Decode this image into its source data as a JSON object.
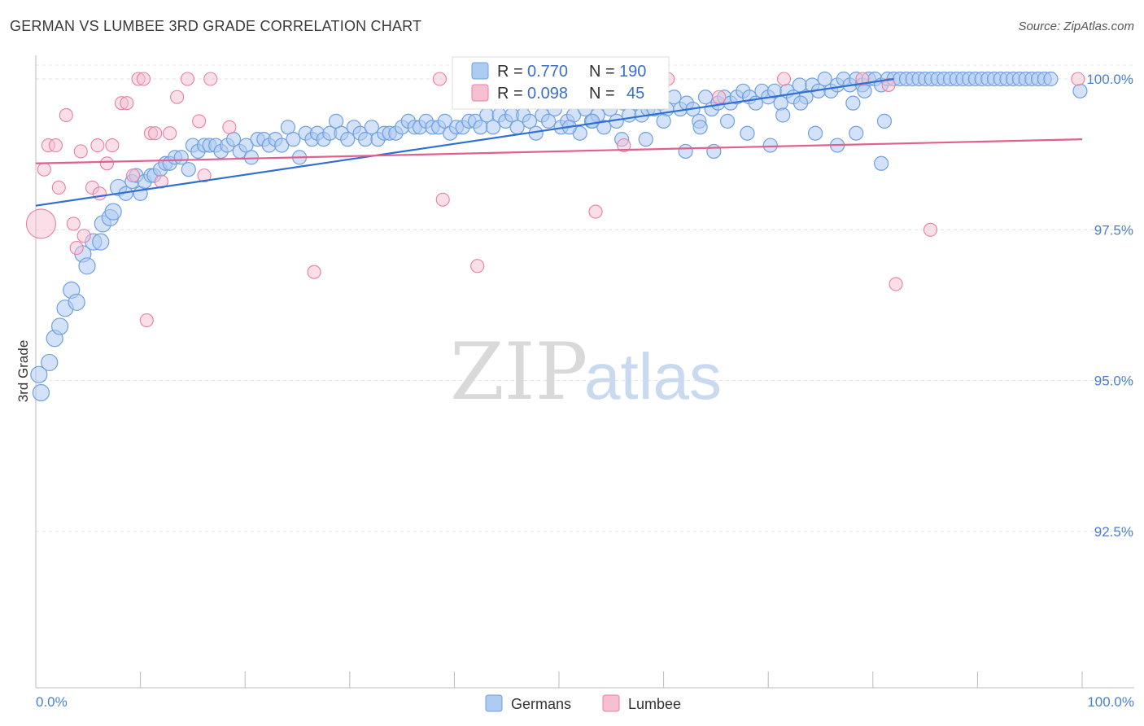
{
  "title": "GERMAN VS LUMBEE 3RD GRADE CORRELATION CHART",
  "source": "Source: ZipAtlas.com",
  "watermark": {
    "zip": "ZIP",
    "atlas": "atlas"
  },
  "colors": {
    "german": "#6fa0e0",
    "german_fill": "#aecbf2",
    "german_line": "#2f6fd0",
    "lumbee": "#e87fa4",
    "lumbee_fill": "#f6bfd2",
    "lumbee_line": "#e0608f"
  },
  "legend": {
    "german": {
      "r_label": "R = ",
      "r_value": "0.770",
      "n_label": "N = ",
      "n_value": "190"
    },
    "lumbee": {
      "r_label": "R = ",
      "r_value": "0.098",
      "n_label": "N = ",
      "n_value": "45"
    }
  },
  "chart_data": {
    "type": "scatter",
    "title": "GERMAN VS LUMBEE 3RD GRADE CORRELATION CHART",
    "xlabel": "",
    "ylabel": "3rd Grade",
    "xlim": [
      0,
      100
    ],
    "ylim": [
      90.0,
      100.3
    ],
    "x_tick_labels": [
      "0.0%",
      "100.0%"
    ],
    "y_ticks": [
      92.5,
      95.0,
      97.5,
      100.0
    ],
    "y_tick_labels": [
      "92.5%",
      "95.0%",
      "97.5%",
      "100.0%"
    ],
    "grid": true,
    "legend_position": "top-center",
    "series": [
      {
        "name": "Germans",
        "trend": {
          "x0": 0,
          "y0": 97.9,
          "x1": 82,
          "y1": 100.0
        },
        "points": [
          [
            0.3,
            95.1
          ],
          [
            0.5,
            94.8
          ],
          [
            1.3,
            95.3
          ],
          [
            1.8,
            95.7
          ],
          [
            2.3,
            95.9
          ],
          [
            2.8,
            96.2
          ],
          [
            3.4,
            96.5
          ],
          [
            3.9,
            96.3
          ],
          [
            4.5,
            97.1
          ],
          [
            4.9,
            96.9
          ],
          [
            5.5,
            97.3
          ],
          [
            6.2,
            97.3
          ],
          [
            6.4,
            97.6
          ],
          [
            7.1,
            97.7
          ],
          [
            7.4,
            97.8
          ],
          [
            7.9,
            98.2
          ],
          [
            8.6,
            98.1
          ],
          [
            9.2,
            98.3
          ],
          [
            9.6,
            98.4
          ],
          [
            10.0,
            98.1
          ],
          [
            10.4,
            98.3
          ],
          [
            11.0,
            98.4
          ],
          [
            11.3,
            98.4
          ],
          [
            11.9,
            98.5
          ],
          [
            12.4,
            98.6
          ],
          [
            12.8,
            98.6
          ],
          [
            13.3,
            98.7
          ],
          [
            13.9,
            98.7
          ],
          [
            14.6,
            98.5
          ],
          [
            15.0,
            98.9
          ],
          [
            15.5,
            98.8
          ],
          [
            16.1,
            98.9
          ],
          [
            16.6,
            98.9
          ],
          [
            17.2,
            98.9
          ],
          [
            17.7,
            98.8
          ],
          [
            18.3,
            98.9
          ],
          [
            18.9,
            99.0
          ],
          [
            19.5,
            98.8
          ],
          [
            20.1,
            98.9
          ],
          [
            20.6,
            98.7
          ],
          [
            21.2,
            99.0
          ],
          [
            21.8,
            99.0
          ],
          [
            22.3,
            98.9
          ],
          [
            22.9,
            99.0
          ],
          [
            23.5,
            98.9
          ],
          [
            24.1,
            99.2
          ],
          [
            24.6,
            99.0
          ],
          [
            25.2,
            98.7
          ],
          [
            25.8,
            99.1
          ],
          [
            26.4,
            99.0
          ],
          [
            26.9,
            99.1
          ],
          [
            27.5,
            99.0
          ],
          [
            28.1,
            99.1
          ],
          [
            28.7,
            99.3
          ],
          [
            29.2,
            99.1
          ],
          [
            29.8,
            99.0
          ],
          [
            30.4,
            99.2
          ],
          [
            31.0,
            99.1
          ],
          [
            31.5,
            99.0
          ],
          [
            32.1,
            99.2
          ],
          [
            32.7,
            99.0
          ],
          [
            33.3,
            99.1
          ],
          [
            33.8,
            99.1
          ],
          [
            34.4,
            99.1
          ],
          [
            35.0,
            99.2
          ],
          [
            35.6,
            99.3
          ],
          [
            36.2,
            99.2
          ],
          [
            36.7,
            99.2
          ],
          [
            37.3,
            99.3
          ],
          [
            37.9,
            99.2
          ],
          [
            38.5,
            99.2
          ],
          [
            39.1,
            99.3
          ],
          [
            39.6,
            99.1
          ],
          [
            40.2,
            99.2
          ],
          [
            40.8,
            99.2
          ],
          [
            41.4,
            99.3
          ],
          [
            42.0,
            99.3
          ],
          [
            42.5,
            99.2
          ],
          [
            43.1,
            99.4
          ],
          [
            43.7,
            99.2
          ],
          [
            44.3,
            99.4
          ],
          [
            44.9,
            99.3
          ],
          [
            45.5,
            99.4
          ],
          [
            46.0,
            99.2
          ],
          [
            46.6,
            99.4
          ],
          [
            47.2,
            99.3
          ],
          [
            47.8,
            99.1
          ],
          [
            48.4,
            99.4
          ],
          [
            49.0,
            99.3
          ],
          [
            49.6,
            99.5
          ],
          [
            50.2,
            99.2
          ],
          [
            50.8,
            99.3
          ],
          [
            51.4,
            99.4
          ],
          [
            52.0,
            99.1
          ],
          [
            52.5,
            99.5
          ],
          [
            53.1,
            99.3
          ],
          [
            53.7,
            99.4
          ],
          [
            54.3,
            99.2
          ],
          [
            54.9,
            99.5
          ],
          [
            55.5,
            99.3
          ],
          [
            56.1,
            99.6
          ],
          [
            56.7,
            99.4
          ],
          [
            57.3,
            99.6
          ],
          [
            57.9,
            99.4
          ],
          [
            58.5,
            99.5
          ],
          [
            59.1,
            99.5
          ],
          [
            59.7,
            99.6
          ],
          [
            60.3,
            99.5
          ],
          [
            61.0,
            99.7
          ],
          [
            61.6,
            99.5
          ],
          [
            62.2,
            99.6
          ],
          [
            62.8,
            99.5
          ],
          [
            63.4,
            99.3
          ],
          [
            64.0,
            99.7
          ],
          [
            64.6,
            99.5
          ],
          [
            65.2,
            99.6
          ],
          [
            65.8,
            99.7
          ],
          [
            66.4,
            99.6
          ],
          [
            67.0,
            99.7
          ],
          [
            67.6,
            99.8
          ],
          [
            68.2,
            99.7
          ],
          [
            68.8,
            99.6
          ],
          [
            69.4,
            99.8
          ],
          [
            70.0,
            99.7
          ],
          [
            70.6,
            99.8
          ],
          [
            71.2,
            99.6
          ],
          [
            71.8,
            99.8
          ],
          [
            72.4,
            99.7
          ],
          [
            73.0,
            99.9
          ],
          [
            73.6,
            99.7
          ],
          [
            74.2,
            99.9
          ],
          [
            74.8,
            99.8
          ],
          [
            75.4,
            100.0
          ],
          [
            76.0,
            99.8
          ],
          [
            76.6,
            99.9
          ],
          [
            77.2,
            100.0
          ],
          [
            77.8,
            99.9
          ],
          [
            78.4,
            100.0
          ],
          [
            79.0,
            99.9
          ],
          [
            79.6,
            100.0
          ],
          [
            80.2,
            100.0
          ],
          [
            80.8,
            99.9
          ],
          [
            81.4,
            100.0
          ],
          [
            82.0,
            100.0
          ],
          [
            82.6,
            100.0
          ],
          [
            83.2,
            100.0
          ],
          [
            83.8,
            100.0
          ],
          [
            84.4,
            100.0
          ],
          [
            85.0,
            100.0
          ],
          [
            85.6,
            100.0
          ],
          [
            86.2,
            100.0
          ],
          [
            86.8,
            100.0
          ],
          [
            87.4,
            100.0
          ],
          [
            88.0,
            100.0
          ],
          [
            88.6,
            100.0
          ],
          [
            89.2,
            100.0
          ],
          [
            89.8,
            100.0
          ],
          [
            90.4,
            100.0
          ],
          [
            91.0,
            100.0
          ],
          [
            91.6,
            100.0
          ],
          [
            92.2,
            100.0
          ],
          [
            92.8,
            100.0
          ],
          [
            93.4,
            100.0
          ],
          [
            94.0,
            100.0
          ],
          [
            94.6,
            100.0
          ],
          [
            95.2,
            100.0
          ],
          [
            95.8,
            100.0
          ],
          [
            96.4,
            100.0
          ],
          [
            97.0,
            100.0
          ],
          [
            99.8,
            99.8
          ],
          [
            68.0,
            99.1
          ],
          [
            70.2,
            98.9
          ],
          [
            74.5,
            99.1
          ],
          [
            76.6,
            98.9
          ],
          [
            78.4,
            99.1
          ],
          [
            80.8,
            98.6
          ],
          [
            58.3,
            99.0
          ],
          [
            62.1,
            98.8
          ],
          [
            63.5,
            99.2
          ],
          [
            64.8,
            98.8
          ],
          [
            66.1,
            99.3
          ],
          [
            71.4,
            99.4
          ],
          [
            73.1,
            99.6
          ],
          [
            78.1,
            99.6
          ],
          [
            79.2,
            99.8
          ],
          [
            81.1,
            99.3
          ],
          [
            60.0,
            99.3
          ],
          [
            56.0,
            99.0
          ],
          [
            53.2,
            99.3
          ],
          [
            51.0,
            99.2
          ]
        ]
      },
      {
        "name": "Lumbee",
        "trend": {
          "x0": 0,
          "y0": 98.6,
          "x1": 100,
          "y1": 99.0
        },
        "points": [
          [
            0.5,
            97.6
          ],
          [
            0.8,
            98.5
          ],
          [
            1.2,
            98.9
          ],
          [
            1.9,
            98.9
          ],
          [
            2.2,
            98.2
          ],
          [
            2.9,
            99.4
          ],
          [
            3.6,
            97.6
          ],
          [
            3.9,
            97.2
          ],
          [
            4.3,
            98.8
          ],
          [
            4.6,
            97.4
          ],
          [
            5.4,
            98.2
          ],
          [
            5.9,
            98.9
          ],
          [
            6.1,
            98.1
          ],
          [
            6.8,
            98.6
          ],
          [
            7.3,
            98.9
          ],
          [
            8.2,
            99.6
          ],
          [
            8.7,
            99.6
          ],
          [
            9.3,
            98.4
          ],
          [
            9.8,
            100.0
          ],
          [
            10.3,
            100.0
          ],
          [
            10.6,
            96.0
          ],
          [
            11.0,
            99.1
          ],
          [
            11.4,
            99.1
          ],
          [
            12.0,
            98.3
          ],
          [
            12.8,
            99.1
          ],
          [
            13.5,
            99.7
          ],
          [
            14.5,
            100.0
          ],
          [
            15.6,
            99.3
          ],
          [
            16.1,
            98.4
          ],
          [
            16.7,
            100.0
          ],
          [
            18.5,
            99.2
          ],
          [
            26.6,
            96.8
          ],
          [
            38.6,
            100.0
          ],
          [
            38.9,
            98.0
          ],
          [
            42.2,
            96.9
          ],
          [
            53.5,
            97.8
          ],
          [
            56.2,
            98.9
          ],
          [
            60.4,
            100.0
          ],
          [
            65.3,
            99.7
          ],
          [
            71.5,
            100.0
          ],
          [
            79.0,
            100.0
          ],
          [
            81.5,
            99.9
          ],
          [
            82.2,
            96.6
          ],
          [
            85.5,
            97.5
          ],
          [
            99.6,
            100.0
          ]
        ]
      }
    ]
  },
  "bottom_legend": {
    "german": "Germans",
    "lumbee": "Lumbee"
  }
}
